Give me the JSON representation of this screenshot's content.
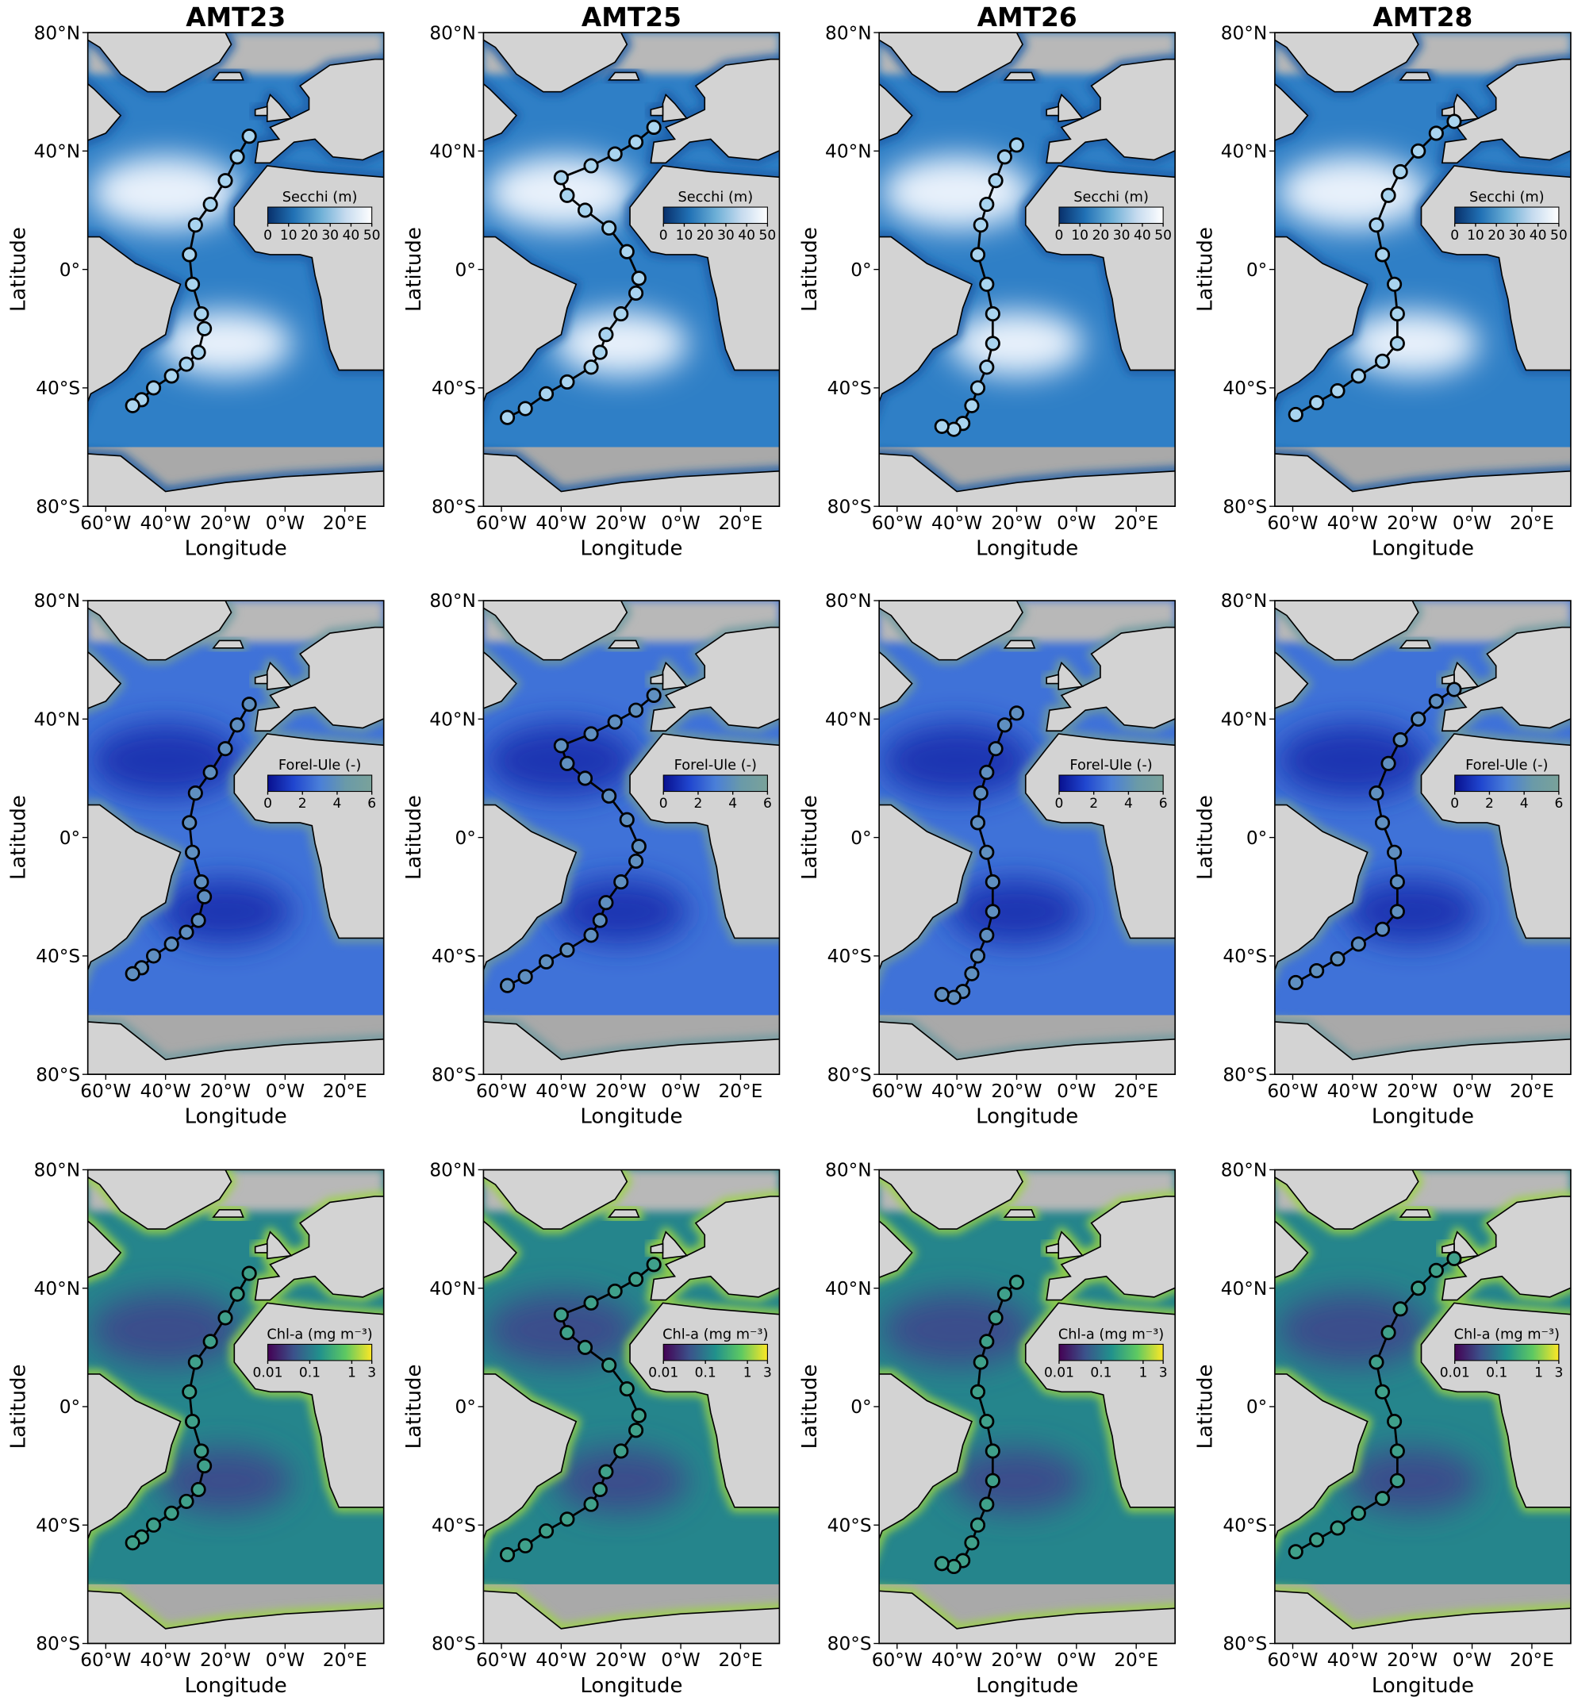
{
  "xlabel": "Longitude",
  "ylabel": "Latitude",
  "xlim": [
    -66,
    33
  ],
  "ylim": [
    -80,
    80
  ],
  "xticks": [
    {
      "value": -60,
      "label": "60°W"
    },
    {
      "value": -40,
      "label": "40°W"
    },
    {
      "value": -20,
      "label": "20°W"
    },
    {
      "value": 0,
      "label": "0°W"
    },
    {
      "value": 20,
      "label": "20°E"
    }
  ],
  "yticks": [
    {
      "value": 80,
      "label": "80°N"
    },
    {
      "value": 40,
      "label": "40°N"
    },
    {
      "value": 0,
      "label": "0°"
    },
    {
      "value": -40,
      "label": "40°S"
    },
    {
      "value": -80,
      "label": "80°S"
    }
  ],
  "columns": [
    {
      "title": "AMT23",
      "track": {
        "lon": [
          -12,
          -16,
          -20,
          -25,
          -30,
          -32,
          -31,
          -28,
          -27,
          -29,
          -33,
          -38,
          -44,
          -48,
          -51
        ],
        "lat": [
          45,
          38,
          30,
          22,
          15,
          5,
          -5,
          -15,
          -20,
          -28,
          -32,
          -36,
          -40,
          -44,
          -46
        ]
      }
    },
    {
      "title": "AMT25",
      "track": {
        "lon": [
          -9,
          -15,
          -22,
          -30,
          -40,
          -38,
          -32,
          -24,
          -18,
          -14,
          -15,
          -20,
          -25,
          -27,
          -30,
          -38,
          -45,
          -52,
          -58
        ],
        "lat": [
          48,
          43,
          39,
          35,
          31,
          25,
          20,
          14,
          6,
          -3,
          -8,
          -15,
          -22,
          -28,
          -33,
          -38,
          -42,
          -47,
          -50
        ]
      }
    },
    {
      "title": "AMT26",
      "track": {
        "lon": [
          -20,
          -24,
          -27,
          -30,
          -32,
          -33,
          -30,
          -28,
          -28,
          -30,
          -33,
          -35,
          -38,
          -41,
          -45
        ],
        "lat": [
          42,
          38,
          30,
          22,
          15,
          5,
          -5,
          -15,
          -25,
          -33,
          -40,
          -46,
          -52,
          -54,
          -53
        ]
      }
    },
    {
      "title": "AMT28",
      "track": {
        "lon": [
          -6,
          -12,
          -18,
          -24,
          -28,
          -32,
          -30,
          -26,
          -25,
          -25,
          -30,
          -38,
          -45,
          -52,
          -59
        ],
        "lat": [
          50,
          46,
          40,
          33,
          25,
          15,
          5,
          -5,
          -15,
          -25,
          -31,
          -36,
          -41,
          -45,
          -49
        ]
      }
    }
  ],
  "rows": [
    {
      "colorbar": {
        "label": "Secchi (m)",
        "lim": [
          0,
          50
        ],
        "ticks": [
          0,
          10,
          20,
          30,
          40,
          50
        ],
        "log": false,
        "colors": [
          "#08306b",
          "#2171b5",
          "#6baed6",
          "#c6dbef",
          "#ffffff"
        ]
      },
      "ocean_colors": [
        "#2f7fc6",
        "#e8f1fb",
        "#1a5da8"
      ],
      "point_color": "#a9d4ef"
    },
    {
      "colorbar": {
        "label": "Forel-Ule (-)",
        "lim": [
          0,
          6
        ],
        "ticks": [
          0,
          2,
          4,
          6
        ],
        "log": false,
        "colors": [
          "#08108f",
          "#2046cf",
          "#4a7fd8",
          "#6a9aa8",
          "#7aa29a"
        ]
      },
      "ocean_colors": [
        "#3f72d8",
        "#1e36b2",
        "#6e9aa0"
      ],
      "point_color": "#5f8fc0"
    },
    {
      "colorbar": {
        "label": "Chl-a (mg m⁻³)",
        "lim": [
          0.01,
          3
        ],
        "ticks": [
          0.01,
          0.1,
          1,
          3
        ],
        "log": true,
        "colors": [
          "#440154",
          "#3b528b",
          "#21918c",
          "#5ec962",
          "#fde725"
        ]
      },
      "ocean_colors": [
        "#25858c",
        "#3a4d8c",
        "#9bd444"
      ],
      "point_color": "#3fa08a"
    }
  ]
}
